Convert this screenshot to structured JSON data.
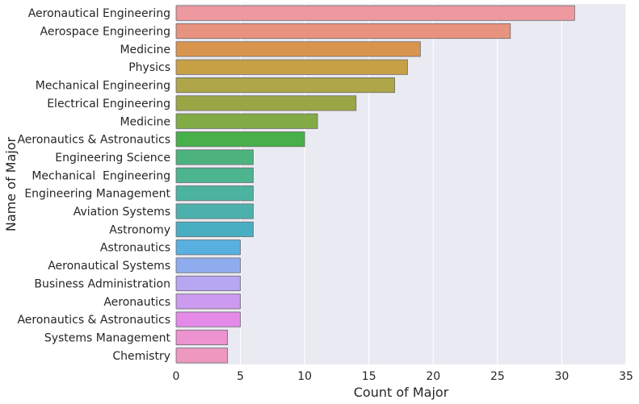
{
  "chart_data": {
    "type": "bar",
    "orientation": "horizontal",
    "title": "",
    "xlabel": "Count of Major",
    "ylabel": "Name of Major",
    "xlim": [
      0,
      35
    ],
    "xticks": [
      0,
      5,
      10,
      15,
      20,
      25,
      30,
      35
    ],
    "grid": true,
    "categories": [
      "Aeronautical Engineering",
      "Aerospace Engineering",
      "Medicine",
      "Physics",
      "Mechanical Engineering",
      "Electrical Engineering",
      "Medicine",
      "Aeronautics & Astronautics",
      "Engineering Science",
      "Mechanical  Engineering",
      "Engineering Management",
      "Aviation Systems",
      "Astronomy",
      "Astronautics",
      "Aeronautical Systems",
      "Business Administration",
      "Aeronautics",
      "Aeronautics & Astronautics",
      "Systems Management",
      "Chemistry"
    ],
    "values": [
      31,
      26,
      19,
      18,
      17,
      14,
      11,
      10,
      6,
      6,
      6,
      6,
      6,
      5,
      5,
      5,
      5,
      5,
      4,
      4
    ],
    "colors": [
      "#ee98a0",
      "#e8937f",
      "#d9944e",
      "#c7a046",
      "#aea648",
      "#9aa545",
      "#82ab46",
      "#47b04a",
      "#4cb37e",
      "#4cb48f",
      "#4cb3a1",
      "#4cb1ac",
      "#4aaec2",
      "#58b0e0",
      "#8fadee",
      "#b7a6f1",
      "#cc9aee",
      "#e58ae9",
      "#ed93d0",
      "#ee98bf"
    ],
    "plot_background": "#eaeaf2"
  }
}
